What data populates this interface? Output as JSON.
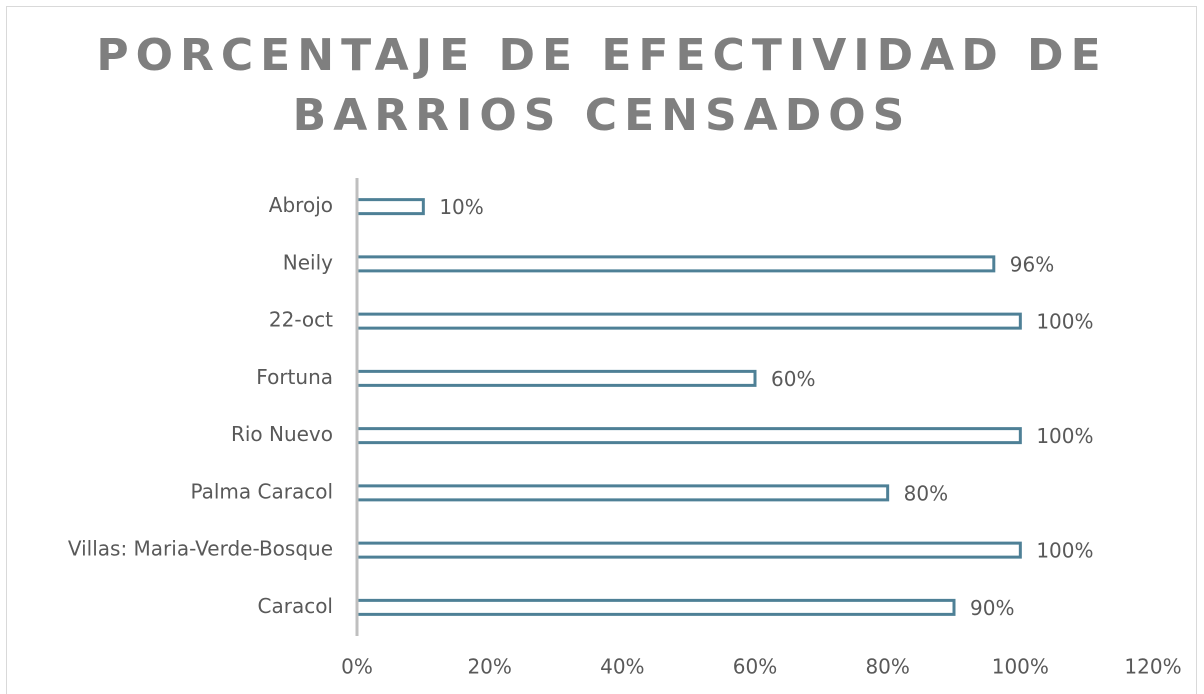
{
  "chart_data": {
    "type": "bar",
    "orientation": "horizontal",
    "title": [
      "PORCENTAJE DE EFECTIVIDAD DE",
      "BARRIOS CENSADOS"
    ],
    "categories": [
      "Abrojo",
      "Neily",
      "22-oct",
      "Fortuna",
      "Rio Nuevo",
      "Palma Caracol",
      "Villas: Maria-Verde-Bosque",
      "Caracol"
    ],
    "values": [
      10,
      96,
      100,
      60,
      100,
      80,
      100,
      90
    ],
    "value_labels": [
      "10%",
      "96%",
      "100%",
      "60%",
      "100%",
      "80%",
      "100%",
      "90%"
    ],
    "color": "#4e8096",
    "xlim": [
      0,
      120
    ],
    "xticks": [
      {
        "value": 0,
        "label": "0%"
      },
      {
        "value": 20,
        "label": "20%"
      },
      {
        "value": 40,
        "label": "40%"
      },
      {
        "value": 60,
        "label": "60%"
      },
      {
        "value": 80,
        "label": "80%"
      },
      {
        "value": 100,
        "label": "100%"
      },
      {
        "value": 120,
        "label": "120%"
      }
    ],
    "grid": false
  }
}
